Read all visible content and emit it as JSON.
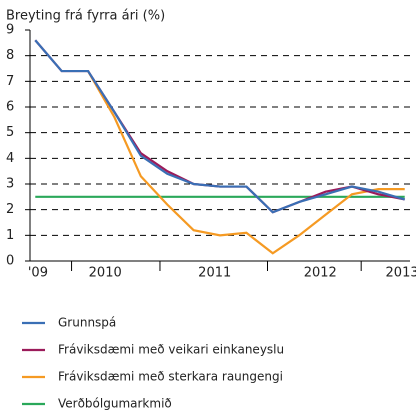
{
  "chart_data": {
    "type": "line",
    "title": "Breyting frá fyrra ári (%)",
    "x": [
      0,
      1,
      2,
      3,
      4,
      5,
      6,
      7,
      8,
      9,
      10,
      11,
      12,
      13,
      14
    ],
    "xlim": [
      -0.2,
      14.2
    ],
    "xticks": [
      {
        "value": 0.1,
        "label": "'09"
      },
      {
        "value": 2.65,
        "label": "2010"
      },
      {
        "value": 6.8,
        "label": "2011"
      },
      {
        "value": 10.8,
        "label": "2012"
      },
      {
        "value": 13.9,
        "label": "2013"
      }
    ],
    "ylim": [
      0,
      9
    ],
    "yticks": [
      0,
      1,
      2,
      3,
      4,
      5,
      6,
      7,
      8,
      9
    ],
    "grid": true,
    "series": [
      {
        "name": "Grunnspá",
        "color": "#3a6fb5",
        "values": [
          8.6,
          7.4,
          7.4,
          5.8,
          4.1,
          3.4,
          3.0,
          2.9,
          2.9,
          1.9,
          2.3,
          2.6,
          2.9,
          2.7,
          2.4
        ]
      },
      {
        "name": "Fráviksdæmi með veikari einkaneyslu",
        "color": "#9b1b5a",
        "values": [
          8.6,
          7.4,
          7.4,
          5.8,
          4.2,
          3.5,
          3.0,
          2.9,
          2.9,
          1.9,
          2.3,
          2.7,
          2.9,
          2.6,
          2.4
        ]
      },
      {
        "name": "Fráviksdæmi með sterkara raungengi",
        "color": "#f59a23",
        "values": [
          null,
          null,
          7.4,
          5.6,
          3.3,
          2.2,
          1.2,
          1.0,
          1.1,
          0.3,
          1.0,
          1.8,
          2.6,
          2.8,
          2.8
        ]
      },
      {
        "name": "Verðbólgumarkmið",
        "color": "#2aa85a",
        "values": [
          2.5,
          2.5,
          2.5,
          2.5,
          2.5,
          2.5,
          2.5,
          2.5,
          2.5,
          2.5,
          2.5,
          2.5,
          2.5,
          2.5,
          2.5
        ]
      }
    ]
  }
}
